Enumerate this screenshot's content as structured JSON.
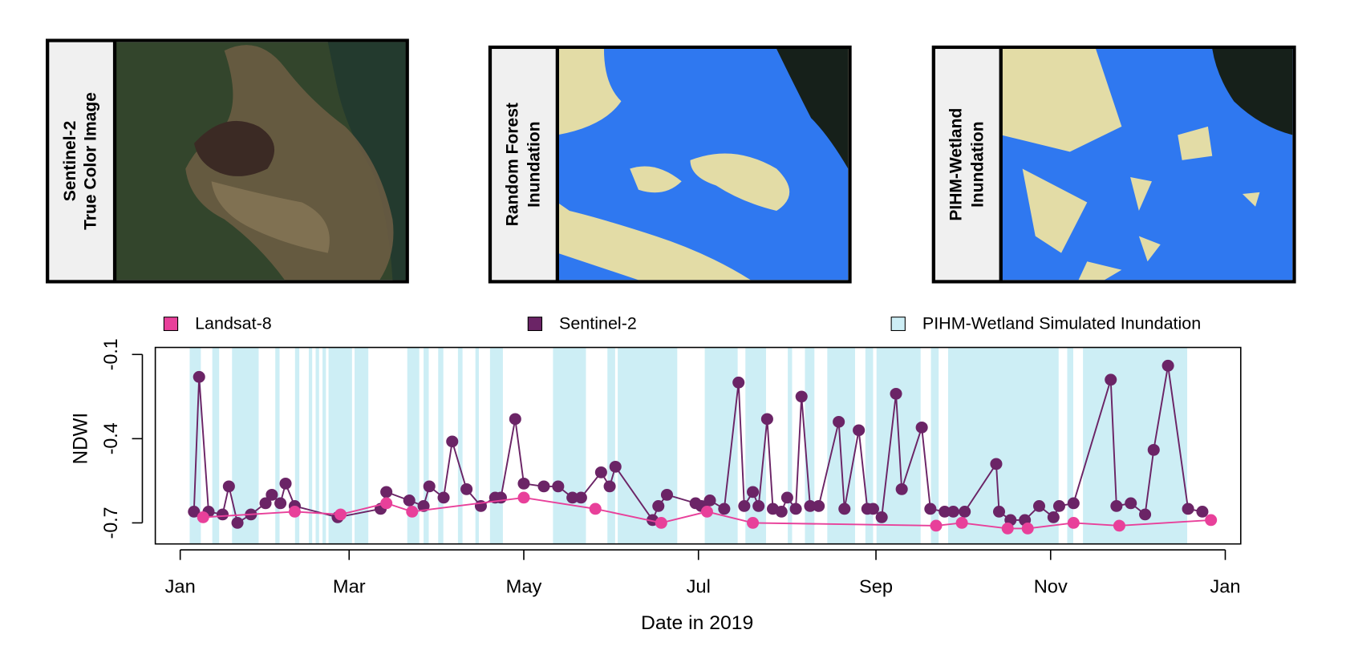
{
  "panels": [
    {
      "label": [
        "Sentinel-2",
        "True Color Image"
      ]
    },
    {
      "label": [
        "Random Forest",
        "Inundation"
      ]
    },
    {
      "label": [
        "PIHM-Wetland",
        "Inundation"
      ]
    }
  ],
  "chart_data": {
    "type": "line",
    "xlabel": "Date in 2019",
    "ylabel": "NDWI",
    "xlim": [
      -7.7,
      371.4
    ],
    "ylim": [
      -0.775,
      -0.075
    ],
    "xticks": [
      {
        "value": 1,
        "label": "Jan"
      },
      {
        "value": 60,
        "label": "Mar"
      },
      {
        "value": 121,
        "label": "May"
      },
      {
        "value": 182,
        "label": "Jul"
      },
      {
        "value": 244,
        "label": "Sep"
      },
      {
        "value": 305,
        "label": "Nov"
      },
      {
        "value": 366,
        "label": "Jan"
      }
    ],
    "yticks": [
      -0.1,
      -0.4,
      -0.7
    ],
    "bands": {
      "name": "PIHM-Wetland Simulated Inundation",
      "color": "#cdeef5",
      "ranges": [
        [
          4.3,
          8.2
        ],
        [
          12.2,
          14.6
        ],
        [
          19.1,
          28.4
        ],
        [
          34.2,
          35.7
        ],
        [
          41.1,
          42.6
        ],
        [
          45.9,
          47.1
        ],
        [
          48.3,
          49.5
        ],
        [
          50.7,
          51.9
        ],
        [
          52.8,
          61
        ],
        [
          61.9,
          66.7
        ],
        [
          80.3,
          84.5
        ],
        [
          86,
          87.8
        ],
        [
          91.1,
          92.9
        ],
        [
          98,
          99.6
        ],
        [
          104.1,
          105.3
        ],
        [
          109.2,
          113.7
        ],
        [
          131.2,
          142.7
        ],
        [
          150.2,
          152.9
        ],
        [
          153.8,
          174.6
        ],
        [
          184.2,
          195.7
        ],
        [
          198.4,
          205.6
        ],
        [
          213.2,
          214.7
        ],
        [
          219.2,
          222.5
        ],
        [
          227,
          236.7
        ],
        [
          240.3,
          243
        ],
        [
          244.2,
          259.6
        ],
        [
          263.2,
          265.9
        ],
        [
          269.2,
          307.8
        ],
        [
          310.8,
          312.9
        ],
        [
          316.3,
          352.7
        ]
      ]
    },
    "series": [
      {
        "name": "Landsat-8",
        "color": "#e8409a",
        "x": [
          9,
          41,
          57,
          73,
          82,
          121,
          146,
          169,
          185,
          201,
          265,
          274,
          290,
          297,
          313,
          329,
          361
        ],
        "values": [
          -0.68,
          -0.66,
          -0.67,
          -0.63,
          -0.66,
          -0.61,
          -0.65,
          -0.7,
          -0.66,
          -0.7,
          -0.71,
          -0.7,
          -0.72,
          -0.72,
          -0.7,
          -0.71,
          -0.69
        ]
      },
      {
        "name": "Sentinel-2",
        "color": "#6b2466",
        "x": [
          5.8,
          7.6,
          10.9,
          15.8,
          18,
          21,
          25.7,
          30.8,
          33,
          36,
          37.8,
          41,
          56,
          71,
          73,
          81,
          86,
          88,
          93,
          96,
          101,
          106,
          111,
          113,
          118,
          121,
          128,
          133,
          138,
          141,
          148,
          151,
          153,
          166,
          168,
          171,
          181,
          183,
          186,
          191,
          196,
          198,
          201,
          203,
          206,
          208,
          211,
          213,
          216,
          218,
          221,
          224,
          231,
          233,
          238,
          241,
          243,
          246,
          251,
          253,
          260,
          263,
          268,
          271,
          275,
          286,
          287,
          291,
          296,
          301,
          306,
          308,
          313,
          326,
          328,
          333,
          338,
          341,
          346,
          353,
          358
        ],
        "values": [
          -0.66,
          -0.18,
          -0.66,
          -0.67,
          -0.57,
          -0.7,
          -0.67,
          -0.63,
          -0.6,
          -0.63,
          -0.56,
          -0.64,
          -0.68,
          -0.65,
          -0.59,
          -0.62,
          -0.64,
          -0.57,
          -0.61,
          -0.41,
          -0.58,
          -0.64,
          -0.61,
          -0.61,
          -0.33,
          -0.56,
          -0.57,
          -0.57,
          -0.61,
          -0.61,
          -0.52,
          -0.57,
          -0.5,
          -0.69,
          -0.64,
          -0.6,
          -0.63,
          -0.64,
          -0.62,
          -0.65,
          -0.2,
          -0.64,
          -0.59,
          -0.64,
          -0.33,
          -0.65,
          -0.66,
          -0.61,
          -0.65,
          -0.25,
          -0.64,
          -0.64,
          -0.34,
          -0.65,
          -0.37,
          -0.65,
          -0.65,
          -0.68,
          -0.24,
          -0.58,
          -0.36,
          -0.65,
          -0.66,
          -0.66,
          -0.66,
          -0.49,
          -0.66,
          -0.69,
          -0.69,
          -0.64,
          -0.68,
          -0.64,
          -0.63,
          -0.19,
          -0.64,
          -0.63,
          -0.67,
          -0.44,
          -0.14,
          -0.65,
          -0.66
        ]
      }
    ]
  }
}
